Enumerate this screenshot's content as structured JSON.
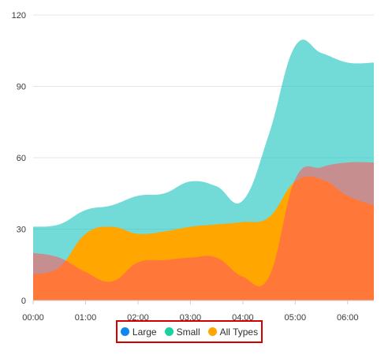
{
  "chart_data": {
    "type": "area",
    "x": [
      "00:00",
      "00:30",
      "01:00",
      "01:30",
      "02:00",
      "02:30",
      "03:00",
      "03:30",
      "04:00",
      "04:30",
      "05:00",
      "05:30",
      "06:00",
      "06:30"
    ],
    "xticks": [
      "00:00",
      "01:00",
      "02:00",
      "03:00",
      "04:00",
      "05:00",
      "06:00"
    ],
    "yticks": [
      0,
      30,
      60,
      90,
      120
    ],
    "ylim": [
      0,
      120
    ],
    "grid": true,
    "legend_position": "bottom",
    "series": [
      {
        "name": "Large",
        "color": "#ff5a5f",
        "opacity": 0.6,
        "values": [
          20,
          18,
          12,
          8,
          16,
          17,
          18,
          18,
          10,
          10,
          51,
          56,
          58,
          58
        ]
      },
      {
        "name": "Small",
        "color": "#14c3bd",
        "opacity": 0.6,
        "values": [
          31,
          32,
          38,
          40,
          44,
          45,
          50,
          48,
          42,
          70,
          107,
          104,
          100,
          100
        ]
      },
      {
        "name": "All Types",
        "color": "#ffa600",
        "opacity": 1,
        "values": [
          11,
          14,
          28,
          31,
          28,
          29,
          31,
          32,
          33,
          35,
          50,
          51,
          44,
          40
        ]
      }
    ]
  },
  "legend": {
    "large": {
      "label": "Large",
      "color": "#0f87ee"
    },
    "small": {
      "label": "Small",
      "color": "#18d3a0"
    },
    "all": {
      "label": "All Types",
      "color": "#ffa600"
    }
  }
}
